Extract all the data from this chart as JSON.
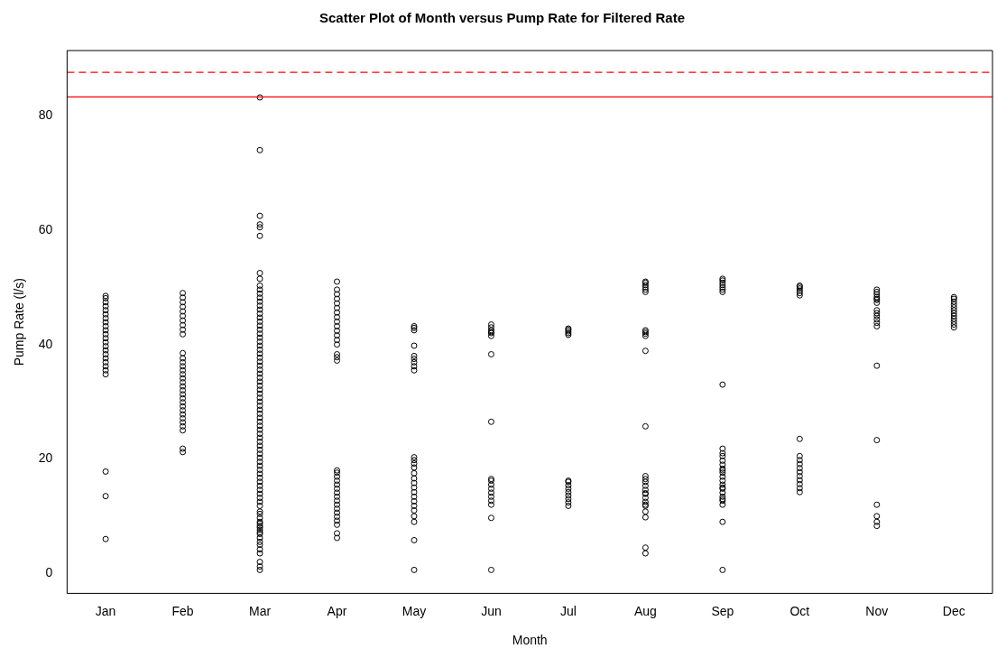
{
  "chart_data": {
    "type": "scatter",
    "title": "Scatter Plot of Month versus Pump Rate for Filtered Rate",
    "xlabel": "Month",
    "ylabel": "Pump Rate (l/s)",
    "categories": [
      "Jan",
      "Feb",
      "Mar",
      "Apr",
      "May",
      "Jun",
      "Jul",
      "Aug",
      "Sep",
      "Oct",
      "Nov",
      "Dec"
    ],
    "ylim": [
      -3.5,
      91.4
    ],
    "yticks": [
      0,
      20,
      40,
      60,
      80
    ],
    "grid": false,
    "legend": false,
    "marker": "circle",
    "ref_lines": [
      {
        "axis": "y",
        "value": 83.3,
        "color": "#ff0000",
        "line_style": "solid"
      },
      {
        "axis": "y",
        "value": 87.6,
        "color": "#ff0000",
        "line_style": "dashed"
      }
    ],
    "series": [
      {
        "color": "#000000",
        "x": [
          "Jan",
          "Jan",
          "Jan",
          "Jan",
          "Jan",
          "Jan",
          "Jan",
          "Jan",
          "Jan",
          "Jan",
          "Jan",
          "Jan",
          "Jan",
          "Jan",
          "Jan",
          "Jan",
          "Jan",
          "Jan",
          "Jan",
          "Jan",
          "Jan",
          "Jan",
          "Jan",
          "Jan"
        ],
        "values": [
          6.0,
          13.5,
          17.8,
          34.8,
          35.5,
          36.2,
          36.9,
          37.6,
          38.3,
          39.0,
          39.7,
          40.4,
          41.1,
          41.8,
          42.5,
          43.2,
          43.9,
          44.6,
          45.3,
          46.0,
          46.7,
          47.4,
          48.1,
          48.5
        ]
      },
      {
        "color": "#000000",
        "x": [
          "Feb",
          "Feb",
          "Feb",
          "Feb",
          "Feb",
          "Feb",
          "Feb",
          "Feb",
          "Feb",
          "Feb",
          "Feb",
          "Feb",
          "Feb",
          "Feb",
          "Feb",
          "Feb",
          "Feb",
          "Feb",
          "Feb",
          "Feb",
          "Feb",
          "Feb",
          "Feb",
          "Feb",
          "Feb",
          "Feb",
          "Feb",
          "Feb",
          "Feb",
          "Feb",
          "Feb",
          "Feb"
        ],
        "values": [
          21.2,
          21.8,
          25.0,
          25.7,
          26.4,
          27.1,
          27.8,
          28.5,
          29.2,
          29.9,
          30.6,
          31.3,
          32.0,
          32.7,
          33.4,
          34.1,
          34.8,
          35.5,
          36.2,
          36.9,
          37.6,
          38.5,
          41.8,
          42.6,
          43.4,
          44.2,
          45.0,
          45.8,
          46.6,
          47.4,
          48.2,
          49.0
        ]
      },
      {
        "color": "#000000",
        "x": [
          "Mar",
          "Mar",
          "Mar",
          "Mar",
          "Mar",
          "Mar",
          "Mar",
          "Mar",
          "Mar",
          "Mar",
          "Mar",
          "Mar",
          "Mar",
          "Mar",
          "Mar",
          "Mar",
          "Mar",
          "Mar",
          "Mar",
          "Mar",
          "Mar",
          "Mar",
          "Mar",
          "Mar",
          "Mar",
          "Mar",
          "Mar",
          "Mar",
          "Mar",
          "Mar",
          "Mar",
          "Mar",
          "Mar",
          "Mar",
          "Mar",
          "Mar",
          "Mar",
          "Mar",
          "Mar",
          "Mar",
          "Mar",
          "Mar",
          "Mar",
          "Mar",
          "Mar",
          "Mar",
          "Mar",
          "Mar",
          "Mar",
          "Mar",
          "Mar",
          "Mar",
          "Mar",
          "Mar",
          "Mar",
          "Mar",
          "Mar",
          "Mar",
          "Mar",
          "Mar",
          "Mar",
          "Mar",
          "Mar",
          "Mar",
          "Mar",
          "Mar",
          "Mar",
          "Mar",
          "Mar",
          "Mar",
          "Mar",
          "Mar",
          "Mar",
          "Mar",
          "Mar",
          "Mar",
          "Mar",
          "Mar",
          "Mar",
          "Mar",
          "Mar",
          "Mar"
        ],
        "values": [
          0.6,
          1.2,
          2.0,
          3.5,
          4.2,
          5.0,
          5.5,
          6.2,
          6.9,
          7.2,
          7.6,
          8.0,
          8.3,
          8.7,
          9.0,
          9.7,
          10.4,
          10.8,
          11.8,
          12.5,
          13.2,
          13.9,
          14.6,
          15.3,
          16.0,
          16.7,
          17.4,
          18.1,
          18.8,
          19.5,
          20.2,
          20.9,
          21.6,
          22.3,
          23.0,
          23.7,
          24.4,
          25.1,
          25.8,
          26.5,
          27.2,
          27.9,
          28.6,
          29.3,
          30.0,
          30.7,
          31.4,
          32.1,
          32.8,
          33.5,
          34.2,
          34.9,
          35.6,
          36.3,
          37.0,
          37.7,
          38.4,
          39.1,
          39.8,
          40.5,
          41.2,
          41.9,
          42.6,
          43.3,
          44.0,
          44.7,
          45.4,
          46.1,
          46.8,
          47.5,
          48.2,
          48.9,
          49.6,
          50.3,
          51.5,
          52.5,
          59.0,
          60.5,
          61.0,
          62.5,
          74.0,
          83.2
        ]
      },
      {
        "color": "#000000",
        "x": [
          "Apr",
          "Apr",
          "Apr",
          "Apr",
          "Apr",
          "Apr",
          "Apr",
          "Apr",
          "Apr",
          "Apr",
          "Apr",
          "Apr",
          "Apr",
          "Apr",
          "Apr",
          "Apr",
          "Apr",
          "Apr",
          "Apr",
          "Apr",
          "Apr",
          "Apr",
          "Apr",
          "Apr",
          "Apr",
          "Apr",
          "Apr",
          "Apr",
          "Apr",
          "Apr",
          "Apr",
          "Apr",
          "Apr",
          "Apr"
        ],
        "values": [
          6.2,
          7.0,
          8.5,
          9.2,
          9.9,
          10.6,
          11.3,
          12.0,
          12.7,
          13.4,
          14.1,
          14.8,
          15.5,
          16.2,
          16.9,
          17.6,
          18.0,
          37.2,
          37.8,
          38.3,
          40.0,
          40.8,
          41.6,
          42.4,
          43.2,
          44.0,
          44.8,
          45.6,
          46.4,
          47.2,
          48.0,
          48.8,
          49.6,
          51.0
        ]
      },
      {
        "color": "#000000",
        "x": [
          "May",
          "May",
          "May",
          "May",
          "May",
          "May",
          "May",
          "May",
          "May",
          "May",
          "May",
          "May",
          "May",
          "May",
          "May",
          "May",
          "May",
          "May",
          "May",
          "May",
          "May",
          "May",
          "May",
          "May",
          "May",
          "May"
        ],
        "values": [
          0.6,
          5.8,
          9.0,
          10.0,
          11.0,
          11.8,
          12.6,
          13.4,
          14.2,
          15.0,
          15.8,
          16.6,
          17.5,
          18.5,
          19.2,
          19.8,
          20.3,
          35.5,
          36.2,
          36.9,
          37.5,
          38.0,
          39.8,
          42.5,
          42.9,
          43.2
        ]
      },
      {
        "color": "#000000",
        "x": [
          "Jun",
          "Jun",
          "Jun",
          "Jun",
          "Jun",
          "Jun",
          "Jun",
          "Jun",
          "Jun",
          "Jun",
          "Jun",
          "Jun",
          "Jun",
          "Jun",
          "Jun",
          "Jun",
          "Jun",
          "Jun"
        ],
        "values": [
          0.6,
          9.7,
          12.0,
          12.7,
          13.4,
          14.1,
          14.8,
          15.5,
          16.2,
          16.5,
          26.5,
          38.3,
          41.5,
          42.0,
          42.5,
          43.0,
          43.5,
          42.2
        ]
      },
      {
        "color": "#000000",
        "x": [
          "Jul",
          "Jul",
          "Jul",
          "Jul",
          "Jul",
          "Jul",
          "Jul",
          "Jul",
          "Jul",
          "Jul",
          "Jul",
          "Jul",
          "Jul",
          "Jul"
        ],
        "values": [
          11.8,
          12.4,
          13.0,
          13.6,
          14.2,
          14.8,
          15.4,
          16.0,
          16.2,
          41.7,
          42.0,
          42.3,
          42.6,
          42.8
        ]
      },
      {
        "color": "#000000",
        "x": [
          "Aug",
          "Aug",
          "Aug",
          "Aug",
          "Aug",
          "Aug",
          "Aug",
          "Aug",
          "Aug",
          "Aug",
          "Aug",
          "Aug",
          "Aug",
          "Aug",
          "Aug",
          "Aug",
          "Aug",
          "Aug",
          "Aug",
          "Aug",
          "Aug",
          "Aug",
          "Aug",
          "Aug",
          "Aug",
          "Aug",
          "Aug"
        ],
        "values": [
          3.5,
          4.5,
          9.8,
          10.8,
          11.8,
          12.5,
          13.2,
          13.9,
          14.6,
          15.3,
          16.0,
          17.0,
          25.7,
          38.9,
          41.5,
          41.9,
          42.2,
          42.5,
          49.2,
          49.6,
          50.0,
          50.4,
          50.8,
          51.0,
          12.0,
          16.5,
          14.0
        ]
      },
      {
        "color": "#000000",
        "x": [
          "Sep",
          "Sep",
          "Sep",
          "Sep",
          "Sep",
          "Sep",
          "Sep",
          "Sep",
          "Sep",
          "Sep",
          "Sep",
          "Sep",
          "Sep",
          "Sep",
          "Sep",
          "Sep",
          "Sep",
          "Sep",
          "Sep",
          "Sep",
          "Sep",
          "Sep",
          "Sep",
          "Sep",
          "Sep",
          "Sep",
          "Sep",
          "Sep"
        ],
        "values": [
          0.6,
          9.0,
          12.0,
          12.7,
          13.4,
          14.1,
          14.8,
          15.5,
          16.2,
          16.9,
          17.6,
          18.3,
          19.0,
          19.7,
          20.5,
          21.0,
          21.8,
          33.0,
          49.2,
          49.6,
          50.0,
          50.4,
          50.8,
          51.2,
          51.5,
          13.0,
          15.0,
          18.0
        ]
      },
      {
        "color": "#000000",
        "x": [
          "Oct",
          "Oct",
          "Oct",
          "Oct",
          "Oct",
          "Oct",
          "Oct",
          "Oct",
          "Oct",
          "Oct",
          "Oct",
          "Oct",
          "Oct",
          "Oct",
          "Oct",
          "Oct",
          "Oct"
        ],
        "values": [
          14.2,
          14.9,
          15.6,
          16.3,
          17.0,
          17.7,
          18.4,
          19.1,
          19.8,
          20.5,
          23.5,
          48.6,
          49.0,
          49.4,
          49.8,
          50.1,
          50.3
        ]
      },
      {
        "color": "#000000",
        "x": [
          "Nov",
          "Nov",
          "Nov",
          "Nov",
          "Nov",
          "Nov",
          "Nov",
          "Nov",
          "Nov",
          "Nov",
          "Nov",
          "Nov",
          "Nov",
          "Nov",
          "Nov",
          "Nov",
          "Nov",
          "Nov",
          "Nov"
        ],
        "values": [
          8.3,
          9.0,
          10.0,
          12.0,
          23.3,
          36.3,
          43.2,
          43.8,
          44.4,
          45.0,
          45.5,
          46.0,
          47.3,
          47.8,
          48.3,
          48.8,
          49.2,
          49.6,
          48.0
        ]
      },
      {
        "color": "#000000",
        "x": [
          "Dec",
          "Dec",
          "Dec",
          "Dec",
          "Dec",
          "Dec",
          "Dec",
          "Dec",
          "Dec",
          "Dec",
          "Dec",
          "Dec"
        ],
        "values": [
          43.0,
          43.5,
          44.0,
          44.5,
          45.0,
          45.5,
          46.0,
          46.5,
          47.0,
          47.5,
          48.0,
          48.3
        ]
      }
    ]
  }
}
